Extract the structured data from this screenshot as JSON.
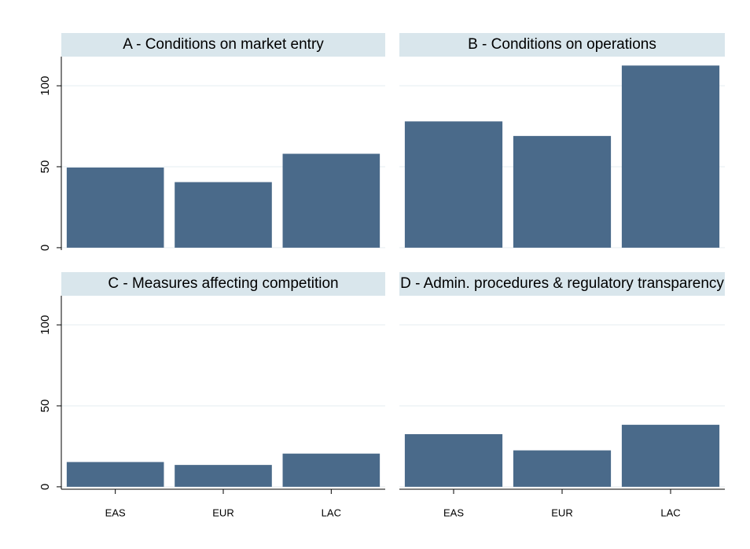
{
  "chart_data": {
    "type": "bar",
    "categories": [
      "EAS",
      "EUR",
      "LAC"
    ],
    "color": "#4a6a8a",
    "ylim": [
      -1.5,
      118
    ],
    "yticks": [
      0,
      50,
      100
    ],
    "grid": true,
    "panels": [
      {
        "title": "A - Conditions on market entry",
        "values": [
          49.5,
          40.5,
          58
        ]
      },
      {
        "title": "B - Conditions on operations",
        "values": [
          78,
          69,
          112.5
        ]
      },
      {
        "title": "C - Measures affecting competition",
        "values": [
          15.3,
          13.5,
          20.5
        ]
      },
      {
        "title": "D - Admin. procedures & regulatory transparency",
        "values": [
          32.5,
          22.5,
          38.3
        ]
      }
    ]
  }
}
